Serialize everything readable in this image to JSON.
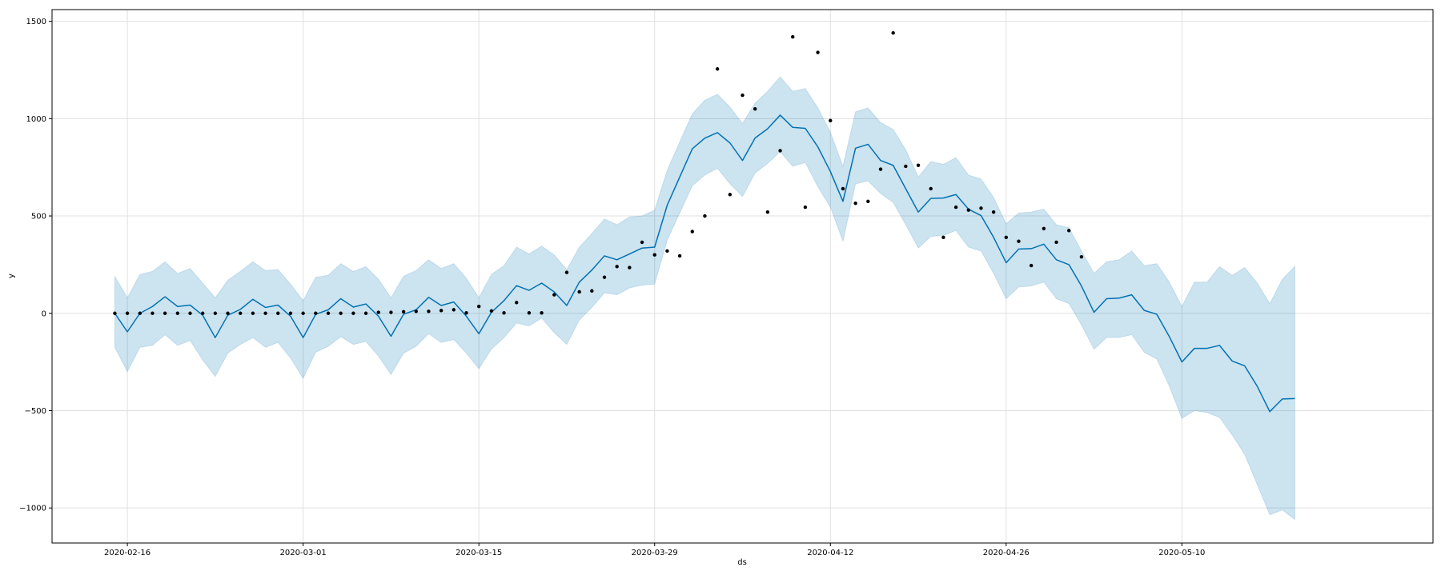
{
  "chart_data": {
    "type": "line",
    "xlabel": "ds",
    "ylabel": "y",
    "x_tick_labels": [
      "2020-02-16",
      "2020-03-01",
      "2020-03-15",
      "2020-03-29",
      "2020-04-12",
      "2020-04-26",
      "2020-05-10"
    ],
    "y_tick_labels": [
      "1500",
      "1000",
      "500",
      "0",
      "−500",
      "−1000"
    ],
    "y_ticks": [
      1500,
      1000,
      500,
      0,
      -500,
      -1000
    ],
    "xlim": [
      "2020-02-10",
      "2020-05-30"
    ],
    "ylim": [
      -1180,
      1560
    ],
    "grid": true,
    "colors": {
      "forecast_line": "#0072B2",
      "uncertainty_band": "#0072B2",
      "observed_points": "#000000",
      "grid": "#e0e0e0"
    },
    "series": [
      {
        "role": "observed",
        "start_date": "2020-02-15",
        "values": [
          0,
          0,
          0,
          0,
          0,
          0,
          0,
          0,
          0,
          0,
          0,
          0,
          0,
          0,
          0,
          0,
          0,
          0,
          0,
          0,
          0,
          5,
          5,
          8,
          10,
          10,
          14,
          18,
          2,
          35,
          12,
          2,
          55,
          2,
          2,
          95,
          210,
          110,
          115,
          185,
          240,
          235,
          365,
          300,
          320,
          295,
          420,
          500,
          1255,
          610,
          1120,
          1050,
          520,
          835,
          1420,
          545,
          1340,
          990,
          640,
          565,
          575,
          740,
          1440,
          755,
          760,
          640,
          390,
          545,
          530,
          540,
          520,
          390,
          370,
          245,
          435,
          365,
          425,
          290
        ]
      },
      {
        "role": "forecast",
        "start_date": "2020-02-15",
        "yhat": [
          0,
          -95,
          0,
          35,
          85,
          35,
          42,
          -10,
          -125,
          -10,
          20,
          72,
          30,
          42,
          -15,
          -125,
          -5,
          18,
          75,
          32,
          48,
          -15,
          -118,
          -5,
          18,
          82,
          40,
          58,
          -15,
          -105,
          5,
          65,
          142,
          118,
          155,
          110,
          40,
          160,
          222,
          295,
          275,
          305,
          335,
          340,
          555,
          700,
          845,
          900,
          928,
          875,
          785,
          900,
          948,
          1018,
          955,
          950,
          855,
          728,
          575,
          848,
          868,
          785,
          760,
          640,
          520,
          590,
          592,
          610,
          535,
          502,
          390,
          260,
          330,
          332,
          355,
          275,
          250,
          140,
          5,
          75,
          78,
          95,
          15,
          -5,
          -120,
          -250,
          -180,
          -180,
          -165,
          -245,
          -270,
          -375,
          -505,
          -440,
          -438
        ],
        "yhat_upper": [
          190,
          80,
          200,
          215,
          265,
          205,
          230,
          155,
          80,
          170,
          215,
          265,
          220,
          225,
          150,
          65,
          185,
          195,
          255,
          215,
          240,
          175,
          80,
          190,
          220,
          275,
          230,
          255,
          180,
          80,
          200,
          245,
          340,
          305,
          345,
          300,
          225,
          340,
          410,
          485,
          455,
          495,
          500,
          530,
          735,
          880,
          1025,
          1095,
          1125,
          1060,
          975,
          1080,
          1140,
          1215,
          1140,
          1155,
          1055,
          930,
          755,
          1035,
          1055,
          980,
          945,
          840,
          700,
          780,
          765,
          800,
          710,
          690,
          595,
          460,
          515,
          520,
          535,
          455,
          440,
          320,
          205,
          265,
          275,
          320,
          245,
          255,
          160,
          35,
          160,
          160,
          240,
          195,
          235,
          155,
          50,
          175,
          242
        ],
        "yhat_lower": [
          -175,
          -300,
          -175,
          -165,
          -110,
          -165,
          -140,
          -240,
          -325,
          -205,
          -160,
          -125,
          -175,
          -150,
          -230,
          -335,
          -200,
          -170,
          -120,
          -160,
          -145,
          -220,
          -315,
          -205,
          -170,
          -105,
          -150,
          -135,
          -205,
          -285,
          -185,
          -125,
          -50,
          -65,
          -25,
          -100,
          -160,
          -35,
          30,
          105,
          95,
          130,
          145,
          150,
          375,
          515,
          655,
          710,
          745,
          665,
          600,
          720,
          770,
          830,
          755,
          775,
          650,
          545,
          370,
          665,
          680,
          615,
          570,
          455,
          335,
          395,
          400,
          425,
          340,
          320,
          205,
          75,
          135,
          140,
          160,
          75,
          50,
          -60,
          -185,
          -125,
          -125,
          -110,
          -200,
          -235,
          -375,
          -540,
          -500,
          -510,
          -535,
          -625,
          -725,
          -880,
          -1035,
          -1010,
          -1060
        ]
      }
    ]
  }
}
